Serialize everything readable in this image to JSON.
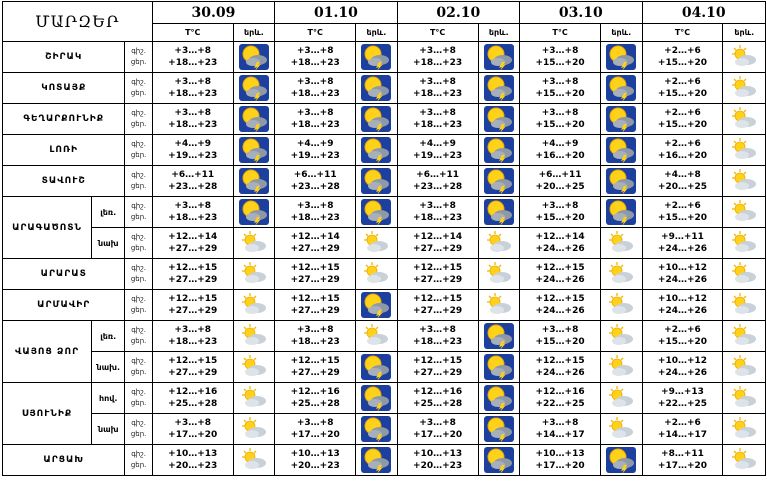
{
  "header": {
    "title": "ՄԱՐԶԵՐ",
    "dates": [
      "30.09",
      "01.10",
      "02.10",
      "03.10",
      "04.10"
    ],
    "temp_label": "T°C",
    "phen_label": "երև."
  },
  "row_labels": {
    "night": "գիշ.",
    "day": "ցեր."
  },
  "rows": [
    {
      "region": "ՇԻՐԱԿ",
      "sub": "",
      "days": [
        [
          "+3…+8",
          "+18…+23",
          "storm"
        ],
        [
          "+3…+8",
          "+18…+23",
          "storm"
        ],
        [
          "+3…+8",
          "+18…+23",
          "storm"
        ],
        [
          "+3…+8",
          "+15…+20",
          "storm"
        ],
        [
          "+2…+6",
          "+15…+20",
          "cloudy"
        ]
      ]
    },
    {
      "region": "ԿՈՏԱՅՔ",
      "sub": "",
      "days": [
        [
          "+3…+8",
          "+18…+23",
          "storm"
        ],
        [
          "+3…+8",
          "+18…+23",
          "storm"
        ],
        [
          "+3…+8",
          "+18…+23",
          "storm"
        ],
        [
          "+3…+8",
          "+15…+20",
          "storm"
        ],
        [
          "+2…+6",
          "+15…+20",
          "cloudy"
        ]
      ]
    },
    {
      "region": "ԳԵՂԱՐՔՈՒՆԻՔ",
      "sub": "",
      "days": [
        [
          "+3…+8",
          "+18…+23",
          "storm"
        ],
        [
          "+3…+8",
          "+18…+23",
          "storm"
        ],
        [
          "+3…+8",
          "+18…+23",
          "storm"
        ],
        [
          "+3…+8",
          "+15…+20",
          "storm"
        ],
        [
          "+2…+6",
          "+15…+20",
          "cloudy"
        ]
      ]
    },
    {
      "region": "ԼՈՌԻ",
      "sub": "",
      "days": [
        [
          "+4…+9",
          "+19…+23",
          "storm"
        ],
        [
          "+4…+9",
          "+19…+23",
          "storm"
        ],
        [
          "+4…+9",
          "+19…+23",
          "storm"
        ],
        [
          "+4…+9",
          "+16…+20",
          "storm"
        ],
        [
          "+2…+6",
          "+16…+20",
          "cloudy"
        ]
      ]
    },
    {
      "region": "ՏԱՎՈՒՇ",
      "sub": "",
      "days": [
        [
          "+6…+11",
          "+23…+28",
          "storm"
        ],
        [
          "+6…+11",
          "+23…+28",
          "storm"
        ],
        [
          "+6…+11",
          "+23…+28",
          "storm"
        ],
        [
          "+6…+11",
          "+20…+25",
          "storm"
        ],
        [
          "+4…+8",
          "+20…+25",
          "cloudy"
        ]
      ]
    },
    {
      "region": "ԱՐԱԳԱԾՈՏՆ",
      "sub": "լեռ.",
      "days": [
        [
          "+3…+8",
          "+18…+23",
          "storm"
        ],
        [
          "+3…+8",
          "+18…+23",
          "storm"
        ],
        [
          "+3…+8",
          "+18…+23",
          "storm"
        ],
        [
          "+3…+8",
          "+15…+20",
          "storm"
        ],
        [
          "+2…+6",
          "+15…+20",
          "cloudy"
        ]
      ]
    },
    {
      "region": "",
      "sub": "նախ",
      "days": [
        [
          "+12…+14",
          "+27…+29",
          "cloudy"
        ],
        [
          "+12…+14",
          "+27…+29",
          "cloudy"
        ],
        [
          "+12…+14",
          "+27…+29",
          "cloudy"
        ],
        [
          "+12…+14",
          "+24…+26",
          "cloudy"
        ],
        [
          "+9…+11",
          "+24…+26",
          "cloudy"
        ]
      ]
    },
    {
      "region": "ԱՐԱՐԱՏ",
      "sub": "",
      "days": [
        [
          "+12…+15",
          "+27…+29",
          "cloudy"
        ],
        [
          "+12…+15",
          "+27…+29",
          "cloudy"
        ],
        [
          "+12…+15",
          "+27…+29",
          "cloudy"
        ],
        [
          "+12…+15",
          "+24…+26",
          "cloudy"
        ],
        [
          "+10…+12",
          "+24…+26",
          "cloudy"
        ]
      ]
    },
    {
      "region": "ԱՐՄԱՎԻՐ",
      "sub": "",
      "days": [
        [
          "+12…+15",
          "+27…+29",
          "cloudy"
        ],
        [
          "+12…+15",
          "+27…+29",
          "storm"
        ],
        [
          "+12…+15",
          "+27…+29",
          "cloudy"
        ],
        [
          "+12…+15",
          "+24…+26",
          "cloudy"
        ],
        [
          "+10…+12",
          "+24…+26",
          "cloudy"
        ]
      ]
    },
    {
      "region": "ՎԱՅՈՑ ՁՈՐ",
      "sub": "լեռ.",
      "days": [
        [
          "+3…+8",
          "+18…+23",
          "cloudy"
        ],
        [
          "+3…+8",
          "+18…+23",
          "cloudy"
        ],
        [
          "+3…+8",
          "+18…+23",
          "storm"
        ],
        [
          "+3…+8",
          "+15…+20",
          "cloudy"
        ],
        [
          "+2…+6",
          "+15…+20",
          "cloudy"
        ]
      ]
    },
    {
      "region": "",
      "sub": "նախ.",
      "days": [
        [
          "+12…+15",
          "+27…+29",
          "cloudy"
        ],
        [
          "+12…+15",
          "+27…+29",
          "storm"
        ],
        [
          "+12…+15",
          "+27…+29",
          "storm"
        ],
        [
          "+12…+15",
          "+24…+26",
          "cloudy"
        ],
        [
          "+10…+12",
          "+24…+26",
          "cloudy"
        ]
      ]
    },
    {
      "region": "ՍՅՈՒՆԻՔ",
      "sub": "հով.",
      "days": [
        [
          "+12…+16",
          "+25…+28",
          "cloudy"
        ],
        [
          "+12…+16",
          "+25…+28",
          "storm"
        ],
        [
          "+12…+16",
          "+25…+28",
          "storm"
        ],
        [
          "+12…+16",
          "+22…+25",
          "cloudy"
        ],
        [
          "+9…+13",
          "+22…+25",
          "cloudy"
        ]
      ]
    },
    {
      "region": "",
      "sub": "նախ",
      "days": [
        [
          "+3…+8",
          "+17…+20",
          "cloudy"
        ],
        [
          "+3…+8",
          "+17…+20",
          "storm"
        ],
        [
          "+3…+8",
          "+17…+20",
          "storm"
        ],
        [
          "+3…+8",
          "+14…+17",
          "cloudy"
        ],
        [
          "+2…+6",
          "+14…+17",
          "cloudy"
        ]
      ]
    },
    {
      "region": "ԱՐՑԱԽ",
      "sub": "",
      "days": [
        [
          "+10…+13",
          "+20…+23",
          "cloudy"
        ],
        [
          "+10…+13",
          "+20…+23",
          "storm"
        ],
        [
          "+10…+13",
          "+20…+23",
          "storm"
        ],
        [
          "+10…+13",
          "+17…+20",
          "storm"
        ],
        [
          "+8…+11",
          "+17…+20",
          "cloudy"
        ]
      ]
    }
  ],
  "icon_names": {
    "storm": "thunderstorm-icon",
    "cloudy": "partly-cloudy-icon"
  }
}
